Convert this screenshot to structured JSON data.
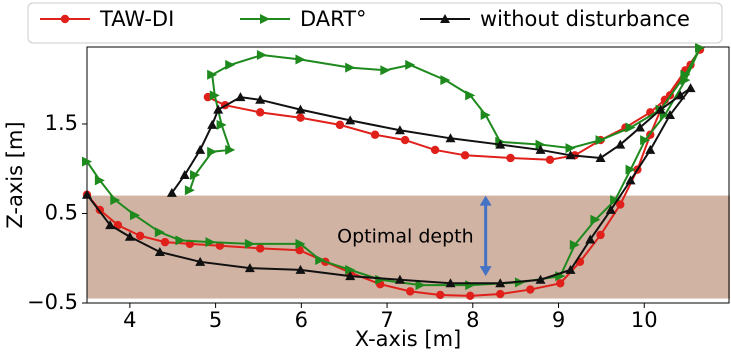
{
  "chart_data": {
    "type": "line",
    "xlabel": "X-axis [m]",
    "ylabel": "Z-axis [m]",
    "xlim": [
      3.5,
      11
    ],
    "ylim": [
      -0.5,
      2.36
    ],
    "xticks": [
      4,
      5,
      6,
      7,
      8,
      9,
      10
    ],
    "yticks": [
      {
        "value": -0.5,
        "label": "−0.5"
      },
      0.5,
      1.5
    ],
    "annotation": "Optimal depth",
    "band": {
      "ymin": -0.45,
      "ymax": 0.7,
      "color": "#c9a693"
    },
    "arrow": {
      "x": 8.15,
      "y": [
        0.7,
        -0.2
      ],
      "color": "#4472c4"
    },
    "legend": "top",
    "series": [
      {
        "name": "TAW-DI",
        "color": "#e0201b",
        "marker": "circle",
        "x": [
          3.5,
          3.65,
          3.86,
          4.12,
          4.41,
          4.7,
          5.05,
          5.52,
          5.98,
          6.28,
          6.57,
          6.92,
          7.27,
          7.62,
          7.97,
          8.32,
          8.67,
          9.02,
          9.25,
          9.49,
          9.72,
          9.92,
          10.07,
          10.24,
          10.48,
          10.65,
          10.54,
          10.3,
          10.07,
          9.78,
          9.49,
          9.19,
          8.9,
          8.44,
          7.91,
          7.56,
          7.21,
          6.86,
          6.45,
          5.99,
          5.52,
          5.11,
          4.91
        ],
        "values": [
          0.71,
          0.54,
          0.37,
          0.25,
          0.18,
          0.16,
          0.14,
          0.11,
          0.09,
          -0.04,
          -0.16,
          -0.29,
          -0.37,
          -0.41,
          -0.42,
          -0.4,
          -0.35,
          -0.28,
          -0.04,
          0.26,
          0.6,
          0.99,
          1.38,
          1.77,
          2.1,
          2.33,
          2.16,
          1.82,
          1.63,
          1.46,
          1.32,
          1.15,
          1.1,
          1.12,
          1.15,
          1.21,
          1.32,
          1.38,
          1.49,
          1.57,
          1.63,
          1.71,
          1.8
        ]
      },
      {
        "name": "DART°",
        "color": "#1e8a1e",
        "marker": "tri-right",
        "x": [
          3.5,
          3.65,
          3.83,
          4.06,
          4.35,
          4.59,
          4.94,
          5.4,
          5.99,
          6.22,
          6.57,
          6.92,
          7.39,
          7.97,
          8.55,
          9.02,
          9.19,
          9.43,
          9.66,
          9.84,
          10.01,
          10.24,
          10.48,
          10.65,
          10.48,
          10.19,
          9.84,
          9.49,
          9.14,
          8.79,
          8.32,
          8.15,
          7.97,
          7.68,
          7.27,
          6.98,
          6.57,
          5.99,
          5.54,
          5.17,
          4.96,
          4.99,
          5.07,
          5.17,
          4.96,
          4.76,
          4.7
        ],
        "values": [
          1.08,
          0.87,
          0.65,
          0.48,
          0.29,
          0.2,
          0.18,
          0.16,
          0.16,
          -0.02,
          -0.13,
          -0.24,
          -0.3,
          -0.3,
          -0.27,
          -0.2,
          0.15,
          0.43,
          0.65,
          0.99,
          1.32,
          1.6,
          1.99,
          2.35,
          2.05,
          1.66,
          1.46,
          1.32,
          1.23,
          1.27,
          1.3,
          1.6,
          1.82,
          1.99,
          2.16,
          2.1,
          2.13,
          2.22,
          2.27,
          2.16,
          2.05,
          1.82,
          1.49,
          1.21,
          1.19,
          0.93,
          0.76
        ]
      },
      {
        "name": "without disturbance",
        "color": "#111111",
        "marker": "tri-up",
        "x": [
          3.5,
          3.77,
          4.0,
          4.35,
          4.82,
          5.4,
          5.99,
          6.57,
          7.15,
          7.74,
          8.32,
          8.79,
          9.14,
          9.37,
          9.61,
          9.84,
          10.07,
          10.3,
          10.54,
          10.42,
          10.19,
          9.95,
          9.72,
          9.49,
          9.14,
          8.79,
          8.32,
          7.74,
          7.15,
          6.57,
          5.99,
          5.52,
          5.29,
          5.03,
          4.96,
          4.82,
          4.64,
          4.49
        ],
        "values": [
          0.71,
          0.37,
          0.24,
          0.07,
          -0.04,
          -0.11,
          -0.13,
          -0.2,
          -0.24,
          -0.28,
          -0.28,
          -0.24,
          -0.13,
          0.21,
          0.54,
          0.87,
          1.21,
          1.6,
          1.9,
          1.82,
          1.66,
          1.46,
          1.27,
          1.12,
          1.15,
          1.21,
          1.27,
          1.34,
          1.43,
          1.54,
          1.66,
          1.77,
          1.8,
          1.66,
          1.49,
          1.21,
          0.93,
          0.73
        ]
      }
    ]
  }
}
